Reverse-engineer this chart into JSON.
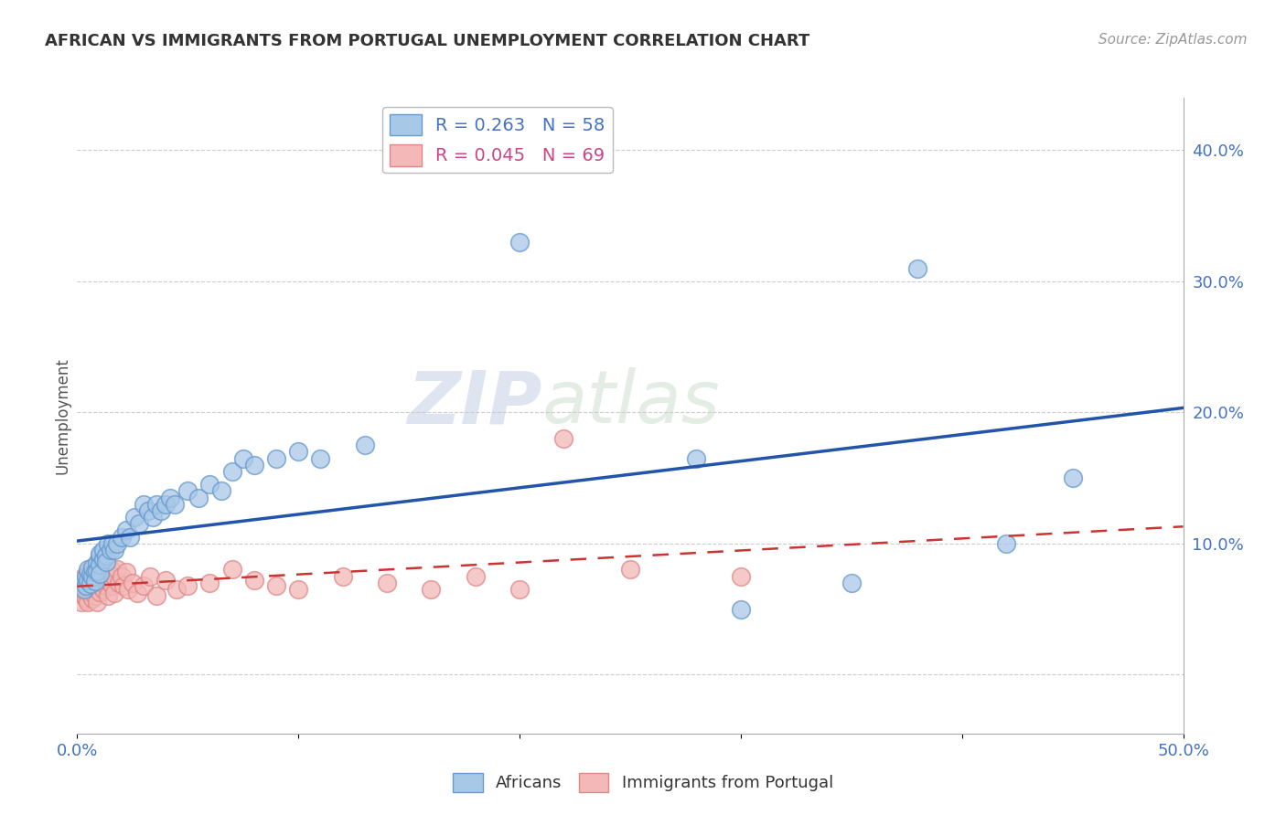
{
  "title": "AFRICAN VS IMMIGRANTS FROM PORTUGAL UNEMPLOYMENT CORRELATION CHART",
  "source": "Source: ZipAtlas.com",
  "ylabel": "Unemployment",
  "yticks": [
    0.0,
    0.1,
    0.2,
    0.3,
    0.4
  ],
  "ytick_labels": [
    "",
    "10.0%",
    "20.0%",
    "30.0%",
    "40.0%"
  ],
  "xlim": [
    0.0,
    0.5
  ],
  "ylim": [
    -0.045,
    0.44
  ],
  "legend_africans_R": "0.263",
  "legend_africans_N": "58",
  "legend_portugal_R": "0.045",
  "legend_portugal_N": "69",
  "africans_color": "#a8c8e8",
  "portugal_color": "#f4b8b8",
  "africans_edge_color": "#6699cc",
  "portugal_edge_color": "#dd8888",
  "africans_line_color": "#2255aa",
  "portugal_line_color": "#cc3333",
  "background_color": "#ffffff",
  "watermark_zip": "ZIP",
  "watermark_atlas": "atlas",
  "africans_x": [
    0.002,
    0.003,
    0.004,
    0.004,
    0.005,
    0.005,
    0.006,
    0.006,
    0.007,
    0.007,
    0.008,
    0.008,
    0.009,
    0.009,
    0.01,
    0.01,
    0.01,
    0.01,
    0.012,
    0.012,
    0.013,
    0.013,
    0.014,
    0.015,
    0.016,
    0.017,
    0.018,
    0.02,
    0.022,
    0.024,
    0.026,
    0.028,
    0.03,
    0.032,
    0.034,
    0.036,
    0.038,
    0.04,
    0.042,
    0.044,
    0.05,
    0.055,
    0.06,
    0.065,
    0.07,
    0.075,
    0.08,
    0.09,
    0.1,
    0.11,
    0.13,
    0.2,
    0.28,
    0.3,
    0.35,
    0.38,
    0.42,
    0.45
  ],
  "africans_y": [
    0.07,
    0.065,
    0.075,
    0.068,
    0.072,
    0.08,
    0.076,
    0.069,
    0.075,
    0.082,
    0.078,
    0.071,
    0.085,
    0.079,
    0.09,
    0.084,
    0.077,
    0.092,
    0.088,
    0.095,
    0.091,
    0.086,
    0.1,
    0.095,
    0.1,
    0.095,
    0.1,
    0.105,
    0.11,
    0.105,
    0.12,
    0.115,
    0.13,
    0.125,
    0.12,
    0.13,
    0.125,
    0.13,
    0.135,
    0.13,
    0.14,
    0.135,
    0.145,
    0.14,
    0.155,
    0.165,
    0.16,
    0.165,
    0.17,
    0.165,
    0.175,
    0.33,
    0.165,
    0.05,
    0.07,
    0.31,
    0.1,
    0.15
  ],
  "portugal_x": [
    0.001,
    0.002,
    0.002,
    0.003,
    0.003,
    0.003,
    0.004,
    0.004,
    0.004,
    0.005,
    0.005,
    0.005,
    0.005,
    0.006,
    0.006,
    0.006,
    0.007,
    0.007,
    0.007,
    0.008,
    0.008,
    0.008,
    0.009,
    0.009,
    0.009,
    0.01,
    0.01,
    0.01,
    0.01,
    0.011,
    0.011,
    0.012,
    0.012,
    0.013,
    0.013,
    0.014,
    0.014,
    0.015,
    0.015,
    0.016,
    0.017,
    0.017,
    0.018,
    0.019,
    0.02,
    0.021,
    0.022,
    0.023,
    0.025,
    0.027,
    0.03,
    0.033,
    0.036,
    0.04,
    0.045,
    0.05,
    0.06,
    0.07,
    0.08,
    0.09,
    0.1,
    0.12,
    0.14,
    0.16,
    0.18,
    0.2,
    0.22,
    0.25,
    0.3
  ],
  "portugal_y": [
    0.065,
    0.055,
    0.07,
    0.06,
    0.075,
    0.068,
    0.058,
    0.072,
    0.065,
    0.07,
    0.062,
    0.078,
    0.055,
    0.07,
    0.063,
    0.075,
    0.068,
    0.058,
    0.073,
    0.065,
    0.075,
    0.06,
    0.068,
    0.078,
    0.055,
    0.07,
    0.063,
    0.075,
    0.085,
    0.068,
    0.08,
    0.072,
    0.065,
    0.075,
    0.068,
    0.078,
    0.06,
    0.07,
    0.08,
    0.068,
    0.075,
    0.062,
    0.08,
    0.07,
    0.075,
    0.068,
    0.078,
    0.065,
    0.07,
    0.062,
    0.068,
    0.075,
    0.06,
    0.072,
    0.065,
    0.068,
    0.07,
    0.08,
    0.072,
    0.068,
    0.065,
    0.075,
    0.07,
    0.065,
    0.075,
    0.065,
    0.18,
    0.08,
    0.075
  ]
}
